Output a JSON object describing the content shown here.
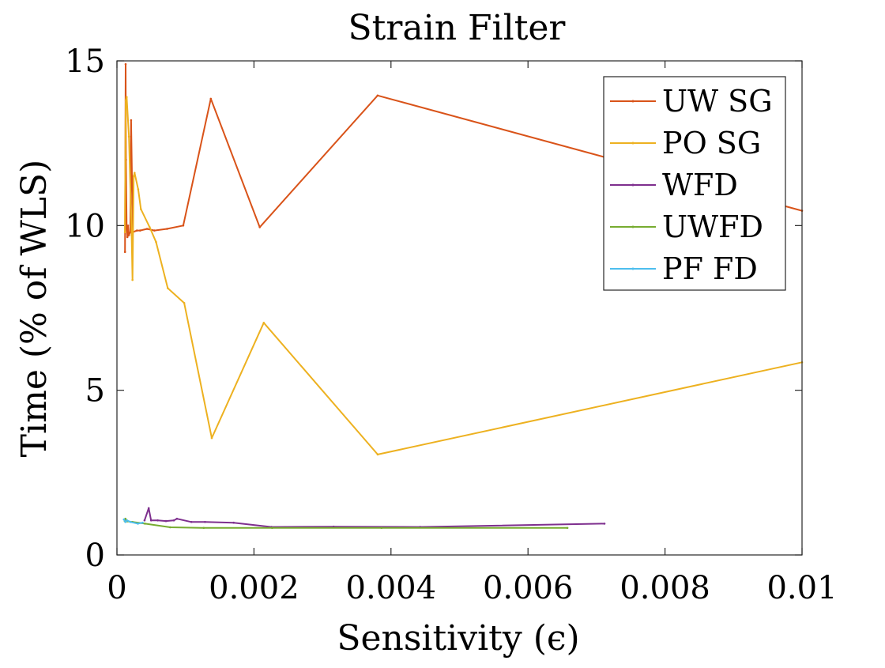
{
  "chart_data": {
    "type": "line",
    "title": "Strain Filter",
    "xlabel": "Sensitivity (ϵ)",
    "ylabel": "Time (% of WLS)",
    "xlim": [
      0,
      0.01
    ],
    "ylim": [
      0,
      15
    ],
    "xticks": [
      0,
      0.002,
      0.004,
      0.006,
      0.008,
      0.01
    ],
    "xtick_labels": [
      "0",
      "0.002",
      "0.004",
      "0.006",
      "0.008",
      "0.01"
    ],
    "yticks": [
      0,
      5,
      10,
      15
    ],
    "ytick_labels": [
      "0",
      "5",
      "10",
      "15"
    ],
    "grid": false,
    "legend_position": "top-right",
    "series": [
      {
        "name": "UW SG",
        "color": "#d95319",
        "points": [
          [
            0.000118,
            9.2
          ],
          [
            0.000127,
            14.9
          ],
          [
            0.000132,
            12.0
          ],
          [
            0.000142,
            9.9
          ],
          [
            0.000152,
            9.65
          ],
          [
            0.000162,
            10.0
          ],
          [
            0.000172,
            9.7
          ],
          [
            0.000195,
            9.8
          ],
          [
            0.000206,
            13.2
          ],
          [
            0.000232,
            9.8
          ],
          [
            0.000292,
            9.85
          ],
          [
            0.000338,
            9.85
          ],
          [
            0.00044,
            9.9
          ],
          [
            0.000547,
            9.85
          ],
          [
            0.000731,
            9.9
          ],
          [
            0.000968,
            10.0
          ],
          [
            0.00137,
            13.85
          ],
          [
            0.002084,
            9.95
          ],
          [
            0.003805,
            13.95
          ],
          [
            0.01,
            10.45
          ]
        ]
      },
      {
        "name": "PO SG",
        "color": "#edb120",
        "points": [
          [
            0.000116,
            9.8
          ],
          [
            0.000128,
            13.8
          ],
          [
            0.000142,
            13.9
          ],
          [
            0.000175,
            12.7
          ],
          [
            0.000215,
            9.7
          ],
          [
            0.000227,
            8.35
          ],
          [
            0.000244,
            11.5
          ],
          [
            0.000257,
            11.6
          ],
          [
            0.00031,
            11.1
          ],
          [
            0.000349,
            10.5
          ],
          [
            0.000478,
            9.95
          ],
          [
            0.000571,
            9.5
          ],
          [
            0.000742,
            8.1
          ],
          [
            0.000982,
            7.65
          ],
          [
            0.001384,
            3.55
          ],
          [
            0.002143,
            7.05
          ],
          [
            0.003806,
            3.05
          ],
          [
            0.01,
            5.85
          ]
        ]
      },
      {
        "name": "WFD",
        "color": "#7e2f8e",
        "points": [
          [
            0.000402,
            1.05
          ],
          [
            0.000464,
            1.42
          ],
          [
            0.000498,
            1.05
          ],
          [
            0.000595,
            1.05
          ],
          [
            0.000715,
            1.03
          ],
          [
            0.000831,
            1.05
          ],
          [
            0.000876,
            1.1
          ],
          [
            0.001086,
            1.0
          ],
          [
            0.001285,
            1.0
          ],
          [
            0.001703,
            0.98
          ],
          [
            0.002256,
            0.85
          ],
          [
            0.003163,
            0.86
          ],
          [
            0.004426,
            0.85
          ],
          [
            0.007116,
            0.95
          ]
        ]
      },
      {
        "name": "UWFD",
        "color": "#77ac30",
        "points": [
          [
            0.000114,
            1.03
          ],
          [
            0.000123,
            1.1
          ],
          [
            0.00015,
            1.02
          ],
          [
            0.000227,
            1.0
          ],
          [
            0.00041,
            0.95
          ],
          [
            0.000777,
            0.84
          ],
          [
            0.001267,
            0.82
          ],
          [
            0.002265,
            0.82
          ],
          [
            0.003861,
            0.82
          ],
          [
            0.006575,
            0.82
          ]
        ]
      },
      {
        "name": "PF FD",
        "color": "#4dbeee",
        "points": [
          [
            0.000101,
            1.08
          ],
          [
            0.000123,
            1.0
          ],
          [
            0.000148,
            1.05
          ],
          [
            0.000198,
            1.0
          ],
          [
            0.000306,
            0.95
          ],
          [
            0.000375,
            0.98
          ]
        ]
      }
    ]
  }
}
